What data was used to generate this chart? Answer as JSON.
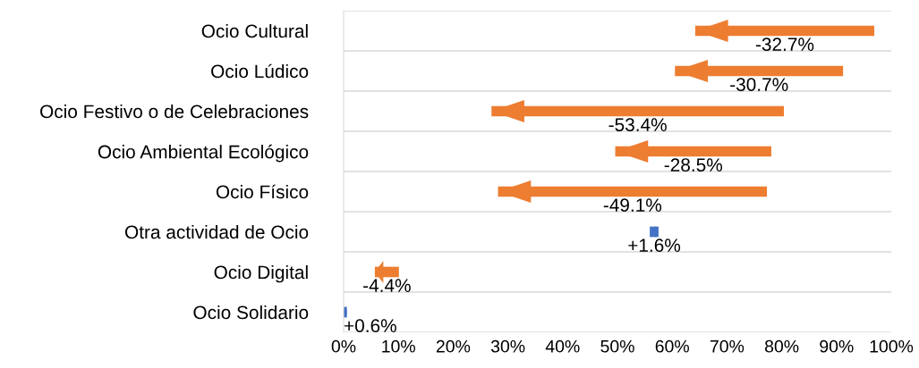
{
  "chart_data": {
    "type": "bar",
    "orientation": "horizontal",
    "categories": [
      "Ocio Cultural",
      "Ocio Lúdico",
      "Ocio Festivo o de Celebraciones",
      "Ocio Ambiental Ecológico",
      "Ocio Físico",
      "Otra actividad de Ocio",
      "Ocio Digital",
      "Ocio Solidario"
    ],
    "base": [
      96.9,
      91.2,
      80.4,
      78.1,
      77.3,
      55.9,
      10.1,
      0
    ],
    "values": [
      -32.7,
      -30.7,
      -53.4,
      -28.5,
      -49.1,
      1.6,
      -4.4,
      0.6
    ],
    "colors": [
      "#ed7d31",
      "#ed7d31",
      "#ed7d31",
      "#ed7d31",
      "#ed7d31",
      "#4472c4",
      "#ed7d31",
      "#4472c4"
    ],
    "value_labels": [
      "-32.7%",
      "-30.7%",
      "-53.4%",
      "-28.5%",
      "-49.1%",
      "+1.6%",
      "-4.4%",
      "+0.6%"
    ],
    "xlim": [
      0,
      100
    ],
    "xticks": [
      {
        "value": 0,
        "label": "0%"
      },
      {
        "value": 10,
        "label": "10%"
      },
      {
        "value": 20,
        "label": "20%"
      },
      {
        "value": 30,
        "label": "30%"
      },
      {
        "value": 40,
        "label": "40%"
      },
      {
        "value": 50,
        "label": "50%"
      },
      {
        "value": 60,
        "label": "60%"
      },
      {
        "value": 70,
        "label": "70%"
      },
      {
        "value": 80,
        "label": "80%"
      },
      {
        "value": 90,
        "label": "90%"
      },
      {
        "value": 100,
        "label": "100%"
      }
    ],
    "grid": "y"
  }
}
